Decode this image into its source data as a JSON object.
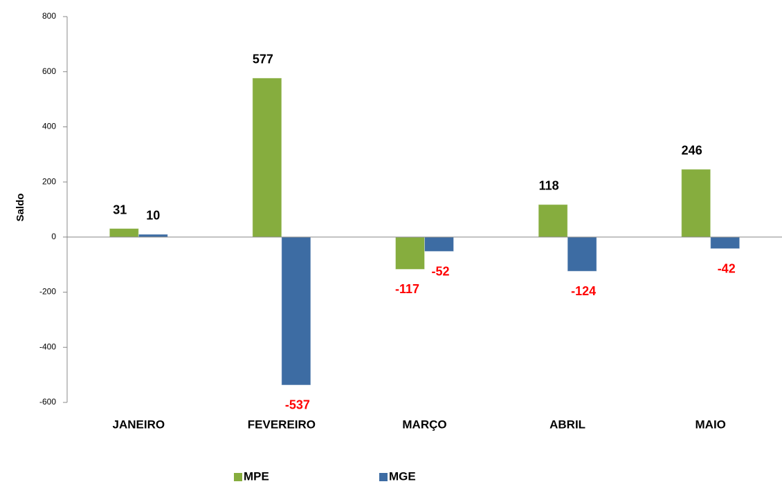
{
  "chart_data": {
    "type": "bar",
    "y_label": "Saldo",
    "categories": [
      "JANEIRO",
      "FEVEREIRO",
      "MARÇO",
      "ABRIL",
      "MAIO"
    ],
    "series": [
      {
        "name": "MPE",
        "color": "#86ad3e",
        "values": [
          31,
          577,
          -117,
          118,
          246
        ]
      },
      {
        "name": "MGE",
        "color": "#3d6ca3",
        "values": [
          10,
          -537,
          -52,
          -124,
          -42
        ]
      }
    ],
    "ylim": [
      -600,
      800
    ],
    "yticks": [
      -600,
      -400,
      -200,
      0,
      200,
      400,
      600,
      800
    ],
    "label_color": "#000000",
    "negative_label_color": "#ff0000",
    "legend": "bottom"
  }
}
